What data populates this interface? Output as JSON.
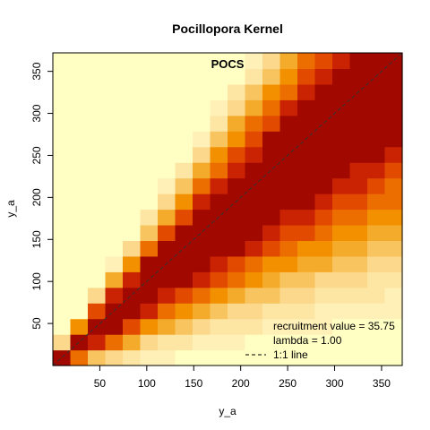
{
  "chart_data": {
    "type": "heatmap",
    "title": "Pocillopora Kernel",
    "xlabel": "y_a",
    "ylabel": "y_a",
    "panel_label": "POCS",
    "xlim": [
      0,
      372
    ],
    "ylim": [
      0,
      372
    ],
    "x_ticks": [
      50,
      100,
      150,
      200,
      250,
      300,
      350
    ],
    "y_ticks": [
      50,
      100,
      150,
      200,
      250,
      300,
      350
    ],
    "grid": false,
    "n_cells": 20,
    "palette": [
      "#ffffc4",
      "#fff0b8",
      "#fde6a4",
      "#fbd88c",
      "#f7c45f",
      "#f4ab2c",
      "#f39000",
      "#ec6d00",
      "#e24a00",
      "#c92304",
      "#a00800"
    ],
    "diagonal": "1:1 line",
    "legend": {
      "position": "bottom-right",
      "entries": [
        "recruitment value = 35.75",
        "lambda = 1.00",
        "1:1 line"
      ]
    },
    "recruitment_value": 35.75,
    "lambda": 1.0
  }
}
